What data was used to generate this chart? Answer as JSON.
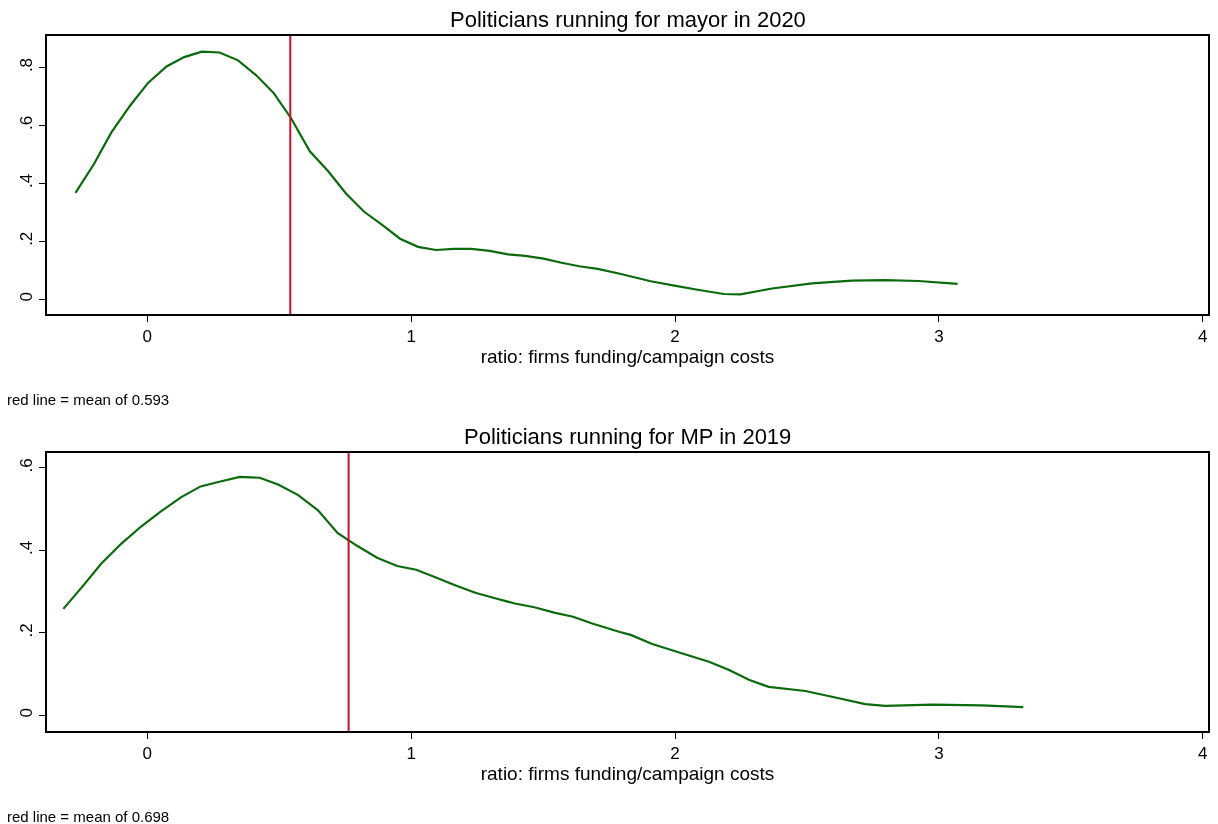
{
  "chart_data": [
    {
      "type": "line",
      "title": "Politicians running for mayor in 2020",
      "xlabel": "ratio: firms funding/campaign costs",
      "annotations": [
        "red line = mean of 0.593"
      ],
      "xlim": [
        -0.38,
        4.02
      ],
      "xticks": [
        0,
        1,
        2,
        3,
        4
      ],
      "ylim": [
        -0.051,
        0.909
      ],
      "yticks": [
        0,
        {
          "value": 0.2,
          "label": ".2"
        },
        {
          "value": 0.4,
          "label": ".4"
        },
        {
          "value": 0.6,
          "label": ".6"
        },
        {
          "value": 0.8,
          "label": ".8"
        }
      ],
      "marker": "none",
      "line_style": "solid",
      "ref_lines": [
        {
          "axis": "x",
          "value": 0.542,
          "color": "#c8102e"
        }
      ],
      "series": [
        {
          "color": "#0b6a0b",
          "x": [
            -0.272,
            -0.202,
            -0.136,
            -0.064,
            0.003,
            0.073,
            0.14,
            0.207,
            0.274,
            0.344,
            0.412,
            0.48,
            0.545,
            0.616,
            0.685,
            0.753,
            0.822,
            0.889,
            0.958,
            1.026,
            1.094,
            1.161,
            1.228,
            1.298,
            1.367,
            1.432,
            1.502,
            1.57,
            1.637,
            1.707,
            1.791,
            1.908,
            2.003,
            2.091,
            2.185,
            2.248,
            2.368,
            2.519,
            2.67,
            2.797,
            2.923,
            3.071
          ],
          "values": [
            0.367,
            0.467,
            0.576,
            0.67,
            0.747,
            0.804,
            0.836,
            0.855,
            0.852,
            0.825,
            0.774,
            0.711,
            0.625,
            0.511,
            0.443,
            0.365,
            0.302,
            0.258,
            0.209,
            0.181,
            0.17,
            0.174,
            0.174,
            0.167,
            0.155,
            0.15,
            0.14,
            0.126,
            0.114,
            0.105,
            0.088,
            0.062,
            0.046,
            0.032,
            0.018,
            0.017,
            0.037,
            0.055,
            0.064,
            0.066,
            0.063,
            0.053
          ]
        }
      ]
    },
    {
      "type": "line",
      "title": "Politicians running for MP in 2019",
      "xlabel": "ratio: firms funding/campaign costs",
      "annotations": [
        "red line = mean of 0.698"
      ],
      "xlim": [
        -0.38,
        4.02
      ],
      "xticks": [
        0,
        1,
        2,
        3,
        4
      ],
      "ylim": [
        -0.038,
        0.636
      ],
      "yticks": [
        0,
        {
          "value": 0.2,
          "label": ".2"
        },
        {
          "value": 0.4,
          "label": ".4"
        },
        {
          "value": 0.6,
          "label": ".6"
        }
      ],
      "marker": "none",
      "line_style": "solid",
      "ref_lines": [
        {
          "axis": "x",
          "value": 0.763,
          "color": "#c8102e"
        }
      ],
      "series": [
        {
          "color": "#0b6a0b",
          "x": [
            -0.318,
            -0.246,
            -0.174,
            -0.097,
            -0.021,
            0.053,
            0.129,
            0.202,
            0.277,
            0.351,
            0.426,
            0.498,
            0.572,
            0.647,
            0.721,
            0.795,
            0.871,
            0.947,
            1.019,
            1.094,
            1.169,
            1.243,
            1.318,
            1.393,
            1.467,
            1.542,
            1.614,
            1.689,
            1.791,
            1.832,
            1.914,
            2.022,
            2.129,
            2.205,
            2.28,
            2.355,
            2.494,
            2.595,
            2.721,
            2.797,
            2.973,
            3.162,
            3.32
          ],
          "values": [
            0.258,
            0.312,
            0.368,
            0.417,
            0.459,
            0.495,
            0.529,
            0.555,
            0.567,
            0.578,
            0.576,
            0.559,
            0.534,
            0.497,
            0.442,
            0.411,
            0.382,
            0.362,
            0.353,
            0.334,
            0.315,
            0.297,
            0.284,
            0.271,
            0.262,
            0.249,
            0.239,
            0.222,
            0.202,
            0.195,
            0.173,
            0.151,
            0.13,
            0.11,
            0.086,
            0.069,
            0.059,
            0.045,
            0.027,
            0.023,
            0.026,
            0.024,
            0.02
          ]
        }
      ]
    }
  ]
}
